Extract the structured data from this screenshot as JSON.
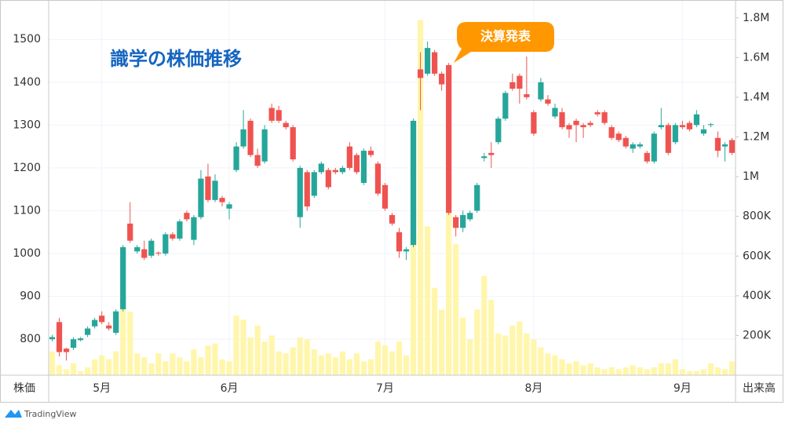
{
  "chart_data": {
    "type": "candlestick",
    "title": "識学の株価推移",
    "annotation": "決算発表",
    "y_label": "株価",
    "y2_label": "出来高",
    "source": "TradingView",
    "categories": [
      null,
      null,
      null,
      null,
      null,
      null,
      null,
      "5月",
      null,
      null,
      null,
      null,
      null,
      null,
      null,
      null,
      null,
      null,
      null,
      null,
      null,
      null,
      null,
      null,
      null,
      "6月",
      null,
      null,
      null,
      null,
      null,
      null,
      null,
      null,
      null,
      null,
      null,
      null,
      null,
      null,
      null,
      null,
      null,
      null,
      null,
      null,
      null,
      "7月",
      null,
      null,
      null,
      null,
      null,
      null,
      null,
      null,
      null,
      null,
      null,
      null,
      null,
      null,
      null,
      null,
      null,
      null,
      null,
      null,
      "8月",
      null,
      null,
      null,
      null,
      null,
      null,
      null,
      null,
      null,
      null,
      null,
      null,
      null,
      null,
      null,
      null,
      null,
      null,
      null,
      null,
      "9月",
      null,
      null,
      null,
      null,
      null,
      null,
      null
    ],
    "open": [
      800,
      840,
      778,
      780,
      798,
      810,
      830,
      855,
      832,
      815,
      870,
      1070,
      1005,
      1010,
      995,
      1002,
      1000,
      1045,
      1035,
      1095,
      1032,
      1085,
      1180,
      1125,
      1130,
      1105,
      1195,
      1250,
      1310,
      1230,
      1215,
      1340,
      1335,
      1305,
      1295,
      1085,
      1190,
      1135,
      1190,
      1195,
      1195,
      1190,
      1250,
      1230,
      1165,
      1240,
      1210,
      1160,
      1090,
      1050,
      1005,
      1020,
      1430,
      1420,
      1470,
      1420,
      1440,
      1085,
      1060,
      1080,
      1100,
      1223,
      1235,
      1260,
      1315,
      1400,
      1415,
      1372,
      1330,
      1360,
      1360,
      1320,
      1330,
      1300,
      1310,
      1300,
      1305,
      1330,
      1330,
      1295,
      1280,
      1270,
      1245,
      1250,
      1235,
      1215,
      1295,
      1300,
      1260,
      1300,
      1305,
      1300,
      1280,
      1300,
      1270,
      1250,
      1265
    ],
    "high": [
      810,
      850,
      780,
      805,
      805,
      830,
      850,
      865,
      840,
      870,
      1020,
      1120,
      1020,
      1030,
      1035,
      1005,
      1050,
      1050,
      1080,
      1100,
      1090,
      1195,
      1210,
      1185,
      1135,
      1120,
      1260,
      1335,
      1315,
      1245,
      1300,
      1350,
      1345,
      1310,
      1300,
      1205,
      1195,
      1195,
      1215,
      1200,
      1200,
      1205,
      1260,
      1235,
      1245,
      1250,
      1215,
      1165,
      1095,
      1060,
      1015,
      1315,
      1470,
      1495,
      1475,
      1425,
      1445,
      1090,
      1100,
      1100,
      1165,
      1235,
      1260,
      1320,
      1380,
      1420,
      1420,
      1460,
      1335,
      1410,
      1370,
      1350,
      1340,
      1305,
      1315,
      1305,
      1310,
      1335,
      1335,
      1300,
      1285,
      1275,
      1260,
      1260,
      1240,
      1285,
      1340,
      1305,
      1305,
      1310,
      1310,
      1335,
      1300,
      1305,
      1285,
      1260,
      1270
    ],
    "low": [
      795,
      760,
      750,
      775,
      795,
      805,
      825,
      835,
      820,
      810,
      865,
      1025,
      1000,
      985,
      990,
      995,
      995,
      1030,
      1030,
      1075,
      1020,
      1080,
      1120,
      1120,
      1110,
      1080,
      1190,
      1245,
      1225,
      1200,
      1210,
      1305,
      1305,
      1290,
      1215,
      1060,
      1100,
      1130,
      1185,
      1150,
      1185,
      1185,
      1195,
      1185,
      1160,
      1225,
      1135,
      1100,
      1065,
      990,
      985,
      1015,
      1335,
      1415,
      1415,
      1380,
      1090,
      1040,
      1050,
      1075,
      1095,
      1215,
      1200,
      1255,
      1310,
      1380,
      1350,
      1360,
      1275,
      1355,
      1345,
      1315,
      1290,
      1270,
      1260,
      1270,
      1295,
      1320,
      1300,
      1265,
      1260,
      1245,
      1235,
      1245,
      1210,
      1210,
      1290,
      1230,
      1255,
      1290,
      1285,
      1295,
      1275,
      1295,
      1225,
      1215,
      1230
    ],
    "close": [
      805,
      770,
      770,
      800,
      802,
      825,
      845,
      840,
      825,
      865,
      1015,
      1030,
      1015,
      990,
      1030,
      1000,
      1045,
      1035,
      1075,
      1080,
      1085,
      1175,
      1125,
      1170,
      1120,
      1115,
      1250,
      1290,
      1230,
      1205,
      1290,
      1310,
      1310,
      1295,
      1220,
      1200,
      1110,
      1190,
      1210,
      1155,
      1190,
      1200,
      1200,
      1190,
      1240,
      1230,
      1140,
      1105,
      1070,
      1005,
      1010,
      1310,
      1410,
      1480,
      1420,
      1395,
      1095,
      1060,
      1090,
      1095,
      1160,
      1227,
      1230,
      1315,
      1375,
      1385,
      1385,
      1365,
      1280,
      1400,
      1350,
      1340,
      1295,
      1290,
      1300,
      1295,
      1300,
      1325,
      1305,
      1270,
      1265,
      1250,
      1255,
      1255,
      1215,
      1280,
      1300,
      1235,
      1300,
      1295,
      1290,
      1325,
      1290,
      1302,
      1240,
      1255,
      1235
    ],
    "volume": [
      120000,
      50000,
      30000,
      60000,
      20000,
      40000,
      80000,
      100000,
      80000,
      120000,
      390000,
      320000,
      110000,
      90000,
      60000,
      110000,
      70000,
      110000,
      90000,
      70000,
      130000,
      90000,
      150000,
      160000,
      80000,
      70000,
      300000,
      280000,
      190000,
      250000,
      170000,
      200000,
      120000,
      110000,
      140000,
      190000,
      180000,
      130000,
      100000,
      110000,
      90000,
      120000,
      80000,
      110000,
      70000,
      80000,
      170000,
      150000,
      120000,
      170000,
      100000,
      1280000,
      1790000,
      750000,
      440000,
      330000,
      820000,
      660000,
      290000,
      180000,
      330000,
      500000,
      380000,
      210000,
      200000,
      250000,
      270000,
      210000,
      180000,
      140000,
      110000,
      100000,
      80000,
      60000,
      70000,
      50000,
      60000,
      40000,
      30000,
      40000,
      30000,
      40000,
      50000,
      40000,
      30000,
      40000,
      60000,
      60000,
      80000,
      30000,
      20000,
      20000,
      30000,
      60000,
      40000,
      30000,
      70000
    ],
    "up_color": "#26a69a",
    "down_color": "#ef5350",
    "volume_color": "#fff59d",
    "ylim": [
      716,
      1592
    ],
    "yticks": [
      800,
      900,
      1000,
      1100,
      1200,
      1300,
      1400,
      1500
    ],
    "y2lim": [
      0,
      1890000
    ],
    "y2ticks": [
      {
        "value": 200000,
        "label": "200K"
      },
      {
        "value": 400000,
        "label": "400K"
      },
      {
        "value": 600000,
        "label": "600K"
      },
      {
        "value": 800000,
        "label": "800K"
      },
      {
        "value": 1000000,
        "label": "1M"
      },
      {
        "value": 1200000,
        "label": "1.2M"
      },
      {
        "value": 1400000,
        "label": "1.4M"
      },
      {
        "value": 1600000,
        "label": "1.6M"
      },
      {
        "value": 1800000,
        "label": "1.8M"
      }
    ],
    "grid": true
  }
}
